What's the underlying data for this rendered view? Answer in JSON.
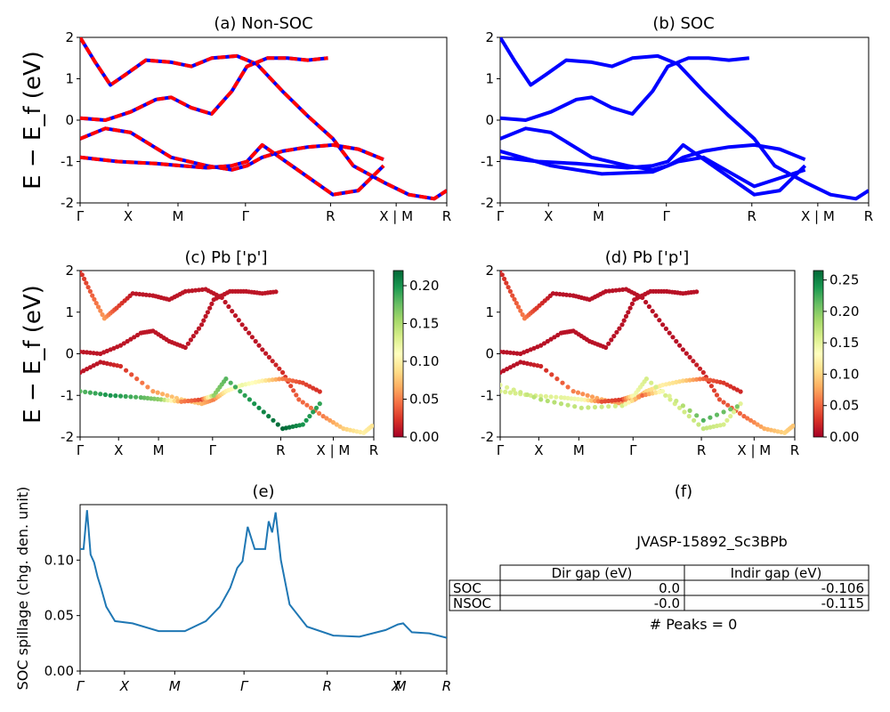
{
  "figure": {
    "ylabel_bands": "E − E_f (eV)",
    "kpath_labels": [
      "Γ",
      "X",
      "M",
      "Γ",
      "R",
      "X | M",
      "R"
    ],
    "kpath_labels_spillage": [
      "Γ",
      "X",
      "M",
      "Γ",
      "R",
      "X",
      "M",
      "R"
    ],
    "colors": {
      "non_soc_dash": "#ff0000",
      "band": "#0000ff",
      "spillage_line": "#1f77b4"
    }
  },
  "chart_data": [
    {
      "id": "a",
      "type": "line",
      "title": "(a) Non-SOC",
      "ylim": [
        -2,
        2
      ],
      "yticks": [
        -2,
        -1,
        0,
        1,
        2
      ],
      "ylabel": "E − E_f (eV)",
      "x_ticks": [
        "Γ",
        "X",
        "M",
        "Γ",
        "R",
        "X | M",
        "R"
      ],
      "style": "blue-with-red-dash",
      "series": [
        {
          "x": [
            0,
            0.06,
            0.12,
            0.18,
            0.26,
            0.36,
            0.44,
            0.52,
            0.62,
            0.7,
            0.8,
            0.9,
            1.0,
            1.08,
            1.2,
            1.3,
            1.4,
            1.45
          ],
          "y": [
            2.0,
            1.4,
            0.85,
            1.1,
            1.45,
            1.4,
            1.3,
            1.5,
            1.55,
            1.35,
            0.7,
            0.1,
            -0.45,
            -1.1,
            -1.5,
            -1.8,
            -1.9,
            -1.7
          ]
        },
        {
          "x": [
            0,
            0.1,
            0.2,
            0.3,
            0.36,
            0.44,
            0.52,
            0.6,
            0.66,
            0.74,
            0.82,
            0.9,
            0.98
          ],
          "y": [
            0.05,
            0.0,
            0.2,
            0.5,
            0.55,
            0.3,
            0.15,
            0.7,
            1.3,
            1.5,
            1.5,
            1.45,
            1.5
          ]
        },
        {
          "x": [
            0,
            0.1,
            0.2,
            0.36,
            0.5,
            0.6,
            0.66,
            0.72,
            0.8,
            0.9,
            1.0,
            1.1,
            1.2
          ],
          "y": [
            -0.45,
            -0.2,
            -0.3,
            -0.9,
            -1.1,
            -1.2,
            -1.1,
            -0.9,
            -0.75,
            -0.65,
            -0.6,
            -0.7,
            -0.95
          ]
        },
        {
          "x": [
            0,
            0.15,
            0.3,
            0.4,
            0.5,
            0.6,
            0.66,
            0.72,
            0.86,
            1.0,
            1.1,
            1.2
          ],
          "y": [
            -0.9,
            -1.0,
            -1.05,
            -1.1,
            -1.15,
            -1.1,
            -1.0,
            -0.6,
            -1.2,
            -1.8,
            -1.7,
            -1.1
          ]
        }
      ]
    },
    {
      "id": "b",
      "type": "line",
      "title": "(b) SOC",
      "ylim": [
        -2,
        2
      ],
      "yticks": [
        -2,
        -1,
        0,
        1,
        2
      ],
      "x_ticks": [
        "Γ",
        "X",
        "M",
        "Γ",
        "R",
        "X | M",
        "R"
      ],
      "style": "blue",
      "series": [
        {
          "x": [
            0,
            0.06,
            0.12,
            0.18,
            0.26,
            0.36,
            0.44,
            0.52,
            0.62,
            0.7,
            0.8,
            0.9,
            1.0,
            1.08,
            1.2,
            1.3,
            1.4,
            1.45
          ],
          "y": [
            2.0,
            1.4,
            0.85,
            1.1,
            1.45,
            1.4,
            1.3,
            1.5,
            1.55,
            1.35,
            0.7,
            0.1,
            -0.45,
            -1.1,
            -1.5,
            -1.8,
            -1.9,
            -1.7
          ]
        },
        {
          "x": [
            0,
            0.1,
            0.2,
            0.3,
            0.36,
            0.44,
            0.52,
            0.6,
            0.66,
            0.74,
            0.82,
            0.9,
            0.98
          ],
          "y": [
            0.05,
            0.0,
            0.2,
            0.5,
            0.55,
            0.3,
            0.15,
            0.7,
            1.3,
            1.5,
            1.5,
            1.45,
            1.5
          ]
        },
        {
          "x": [
            0,
            0.1,
            0.2,
            0.36,
            0.5,
            0.6,
            0.66,
            0.72,
            0.8,
            0.9,
            1.0,
            1.1,
            1.2
          ],
          "y": [
            -0.45,
            -0.2,
            -0.3,
            -0.9,
            -1.1,
            -1.2,
            -1.1,
            -0.9,
            -0.75,
            -0.65,
            -0.6,
            -0.7,
            -0.95
          ]
        },
        {
          "x": [
            0,
            0.15,
            0.3,
            0.4,
            0.5,
            0.6,
            0.66,
            0.72,
            0.86,
            1.0,
            1.1,
            1.2
          ],
          "y": [
            -0.9,
            -1.0,
            -1.05,
            -1.1,
            -1.15,
            -1.1,
            -1.0,
            -0.6,
            -1.2,
            -1.8,
            -1.7,
            -1.1
          ]
        },
        {
          "x": [
            0,
            0.2,
            0.4,
            0.6,
            0.7,
            0.8,
            1.0,
            1.2
          ],
          "y": [
            -0.75,
            -1.1,
            -1.3,
            -1.25,
            -1.0,
            -0.9,
            -1.6,
            -1.2
          ]
        }
      ]
    },
    {
      "id": "c",
      "type": "scatter",
      "title": "(c)  Pb ['p']",
      "ylim": [
        -2,
        2
      ],
      "yticks": [
        -2,
        -1,
        0,
        1,
        2
      ],
      "ylabel": "E − E_f (eV)",
      "x_ticks": [
        "Γ",
        "X",
        "M",
        "Γ",
        "R",
        "X | M",
        "R"
      ],
      "colorbar": {
        "min": 0.0,
        "max": 0.22,
        "ticks": [
          "0.00",
          "0.05",
          "0.10",
          "0.15",
          "0.20"
        ]
      },
      "series": [
        {
          "x": [
            0,
            0.06,
            0.12,
            0.18,
            0.26,
            0.36,
            0.44,
            0.52,
            0.62,
            0.7,
            0.8,
            0.9,
            1.0,
            1.08,
            1.2,
            1.3,
            1.4,
            1.45
          ],
          "y": [
            2.0,
            1.4,
            0.85,
            1.1,
            1.45,
            1.4,
            1.3,
            1.5,
            1.55,
            1.35,
            0.7,
            0.1,
            -0.45,
            -1.1,
            -1.5,
            -1.8,
            -1.9,
            -1.7
          ],
          "weight": [
            0.02,
            0.04,
            0.06,
            0.03,
            0.01,
            0.01,
            0.01,
            0.01,
            0.01,
            0.01,
            0.01,
            0.01,
            0.02,
            0.04,
            0.05,
            0.08,
            0.1,
            0.09
          ]
        },
        {
          "x": [
            0,
            0.1,
            0.2,
            0.3,
            0.36,
            0.44,
            0.52,
            0.6,
            0.66,
            0.74,
            0.82,
            0.9,
            0.98
          ],
          "y": [
            0.05,
            0.0,
            0.2,
            0.5,
            0.55,
            0.3,
            0.15,
            0.7,
            1.3,
            1.5,
            1.5,
            1.45,
            1.5
          ],
          "weight": [
            0.01,
            0.01,
            0.01,
            0.01,
            0.01,
            0.01,
            0.01,
            0.01,
            0.01,
            0.01,
            0.01,
            0.01,
            0.01
          ]
        },
        {
          "x": [
            0,
            0.1,
            0.2,
            0.36,
            0.5,
            0.6,
            0.66,
            0.72,
            0.8,
            0.9,
            1.0,
            1.1,
            1.2
          ],
          "y": [
            -0.45,
            -0.2,
            -0.3,
            -0.9,
            -1.1,
            -1.2,
            -1.1,
            -0.9,
            -0.75,
            -0.65,
            -0.6,
            -0.7,
            -0.95
          ],
          "weight": [
            0.01,
            0.01,
            0.02,
            0.06,
            0.08,
            0.07,
            0.05,
            0.1,
            0.12,
            0.1,
            0.05,
            0.03,
            0.02
          ]
        },
        {
          "x": [
            0,
            0.15,
            0.3,
            0.4,
            0.5,
            0.6,
            0.66,
            0.72,
            0.86,
            1.0,
            1.1,
            1.2
          ],
          "y": [
            -0.9,
            -1.0,
            -1.05,
            -1.1,
            -1.15,
            -1.1,
            -1.0,
            -0.6,
            -1.2,
            -1.8,
            -1.7,
            -1.1
          ],
          "weight": [
            0.18,
            0.2,
            0.18,
            0.16,
            0.05,
            0.03,
            0.16,
            0.18,
            0.2,
            0.22,
            0.2,
            0.19
          ]
        }
      ]
    },
    {
      "id": "d",
      "type": "scatter",
      "title": "(d) Pb ['p']",
      "ylim": [
        -2,
        2
      ],
      "yticks": [
        -2,
        -1,
        0,
        1,
        2
      ],
      "x_ticks": [
        "Γ",
        "X",
        "M",
        "Γ",
        "R",
        "X | M",
        "R"
      ],
      "colorbar": {
        "min": 0.0,
        "max": 0.265,
        "ticks": [
          "0.00",
          "0.05",
          "0.10",
          "0.15",
          "0.20",
          "0.25"
        ]
      },
      "series": [
        {
          "x": [
            0,
            0.06,
            0.12,
            0.18,
            0.26,
            0.36,
            0.44,
            0.52,
            0.62,
            0.7,
            0.8,
            0.9,
            1.0,
            1.08,
            1.2,
            1.3,
            1.4,
            1.45
          ],
          "y": [
            2.0,
            1.4,
            0.85,
            1.1,
            1.45,
            1.4,
            1.3,
            1.5,
            1.55,
            1.35,
            0.7,
            0.1,
            -0.45,
            -1.1,
            -1.5,
            -1.8,
            -1.9,
            -1.7
          ],
          "weight": [
            0.02,
            0.04,
            0.06,
            0.03,
            0.01,
            0.01,
            0.01,
            0.01,
            0.01,
            0.01,
            0.01,
            0.01,
            0.02,
            0.04,
            0.05,
            0.08,
            0.1,
            0.09
          ]
        },
        {
          "x": [
            0,
            0.1,
            0.2,
            0.3,
            0.36,
            0.44,
            0.52,
            0.6,
            0.66,
            0.74,
            0.82,
            0.9,
            0.98
          ],
          "y": [
            0.05,
            0.0,
            0.2,
            0.5,
            0.55,
            0.3,
            0.15,
            0.7,
            1.3,
            1.5,
            1.5,
            1.45,
            1.5
          ],
          "weight": [
            0.01,
            0.01,
            0.01,
            0.01,
            0.01,
            0.01,
            0.01,
            0.01,
            0.01,
            0.01,
            0.01,
            0.01,
            0.01
          ]
        },
        {
          "x": [
            0,
            0.1,
            0.2,
            0.36,
            0.5,
            0.6,
            0.66,
            0.72,
            0.8,
            0.9,
            1.0,
            1.1,
            1.2
          ],
          "y": [
            -0.45,
            -0.2,
            -0.3,
            -0.9,
            -1.1,
            -1.2,
            -1.1,
            -0.9,
            -0.75,
            -0.65,
            -0.6,
            -0.7,
            -0.95
          ],
          "weight": [
            0.01,
            0.01,
            0.02,
            0.06,
            0.08,
            0.07,
            0.05,
            0.1,
            0.12,
            0.1,
            0.05,
            0.03,
            0.02
          ]
        },
        {
          "x": [
            0,
            0.15,
            0.3,
            0.4,
            0.5,
            0.6,
            0.66,
            0.72,
            0.86,
            1.0,
            1.1,
            1.2
          ],
          "y": [
            -0.9,
            -1.0,
            -1.05,
            -1.1,
            -1.15,
            -1.1,
            -1.0,
            -0.6,
            -1.2,
            -1.8,
            -1.7,
            -1.1
          ],
          "weight": [
            0.16,
            0.16,
            0.15,
            0.14,
            0.04,
            0.03,
            0.14,
            0.16,
            0.16,
            0.17,
            0.16,
            0.15
          ]
        },
        {
          "x": [
            0,
            0.2,
            0.4,
            0.6,
            0.7,
            0.8,
            1.0,
            1.2
          ],
          "y": [
            -0.75,
            -1.1,
            -1.3,
            -1.25,
            -1.0,
            -0.9,
            -1.6,
            -1.2
          ],
          "weight": [
            0.15,
            0.18,
            0.17,
            0.16,
            0.05,
            0.14,
            0.22,
            0.2
          ]
        }
      ]
    },
    {
      "id": "e",
      "type": "line",
      "title": "(e)",
      "ylabel": "SOC spillage (chg. den. unit)",
      "ylim": [
        0,
        0.15
      ],
      "yticks": [
        "0.00",
        "0.05",
        "0.10"
      ],
      "x_ticks": [
        "Γ",
        "X",
        "M",
        "Γ",
        "R",
        "X",
        "M",
        "R"
      ],
      "x": [
        0,
        0.02,
        0.04,
        0.06,
        0.08,
        0.1,
        0.12,
        0.15,
        0.2,
        0.3,
        0.45,
        0.6,
        0.72,
        0.8,
        0.86,
        0.9,
        0.93,
        0.96,
        1.0,
        1.03,
        1.06,
        1.08,
        1.1,
        1.12,
        1.15,
        1.2,
        1.3,
        1.45,
        1.6,
        1.75,
        1.82,
        1.85,
        1.9,
        2.0,
        2.1
      ],
      "values": [
        0.11,
        0.11,
        0.145,
        0.105,
        0.098,
        0.085,
        0.075,
        0.058,
        0.045,
        0.043,
        0.036,
        0.036,
        0.045,
        0.058,
        0.075,
        0.093,
        0.099,
        0.13,
        0.11,
        0.11,
        0.11,
        0.135,
        0.125,
        0.143,
        0.1,
        0.06,
        0.04,
        0.032,
        0.031,
        0.037,
        0.042,
        0.043,
        0.035,
        0.034,
        0.03
      ]
    },
    {
      "id": "f",
      "type": "table",
      "title": "(f)",
      "subtitle": "JVASP-15892_Sc3BPb",
      "columns": [
        "",
        "Dir gap (eV)",
        "Indir gap (eV)"
      ],
      "rows": [
        [
          "SOC",
          "0.0",
          "-0.106"
        ],
        [
          "NSOC",
          "-0.0",
          "-0.115"
        ]
      ],
      "note": "# Peaks = 0"
    }
  ]
}
